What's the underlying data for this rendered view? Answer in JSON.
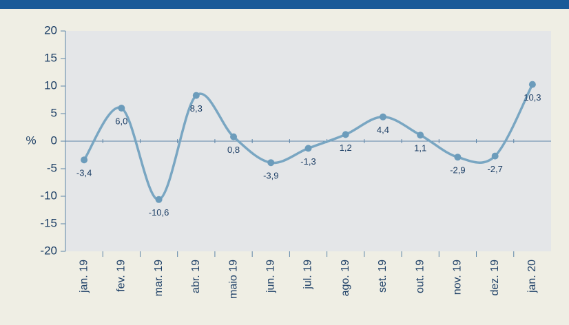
{
  "chart_data": {
    "type": "line",
    "ylabel": "%",
    "categories": [
      "jan. 19",
      "fev. 19",
      "mar. 19",
      "abr. 19",
      "maio 19",
      "jun. 19",
      "jul. 19",
      "ago. 19",
      "set. 19",
      "out. 19",
      "nov. 19",
      "dez. 19",
      "jan. 20"
    ],
    "values": [
      -3.4,
      6.0,
      -10.6,
      8.3,
      0.8,
      -3.9,
      -1.3,
      1.2,
      4.4,
      1.1,
      -2.9,
      -2.7,
      10.3
    ],
    "value_labels": [
      "-3,4",
      "6,0",
      "-10,6",
      "8,3",
      "0,8",
      "-3,9",
      "-1,3",
      "1,2",
      "4,4",
      "1,1",
      "-2,9",
      "-2,7",
      "10,3"
    ],
    "color": "#79a6c2",
    "ylim": [
      -20,
      20
    ],
    "yticks": [
      20,
      15,
      10,
      5,
      0,
      -5,
      -10,
      -15,
      -20
    ],
    "grid": false
  }
}
